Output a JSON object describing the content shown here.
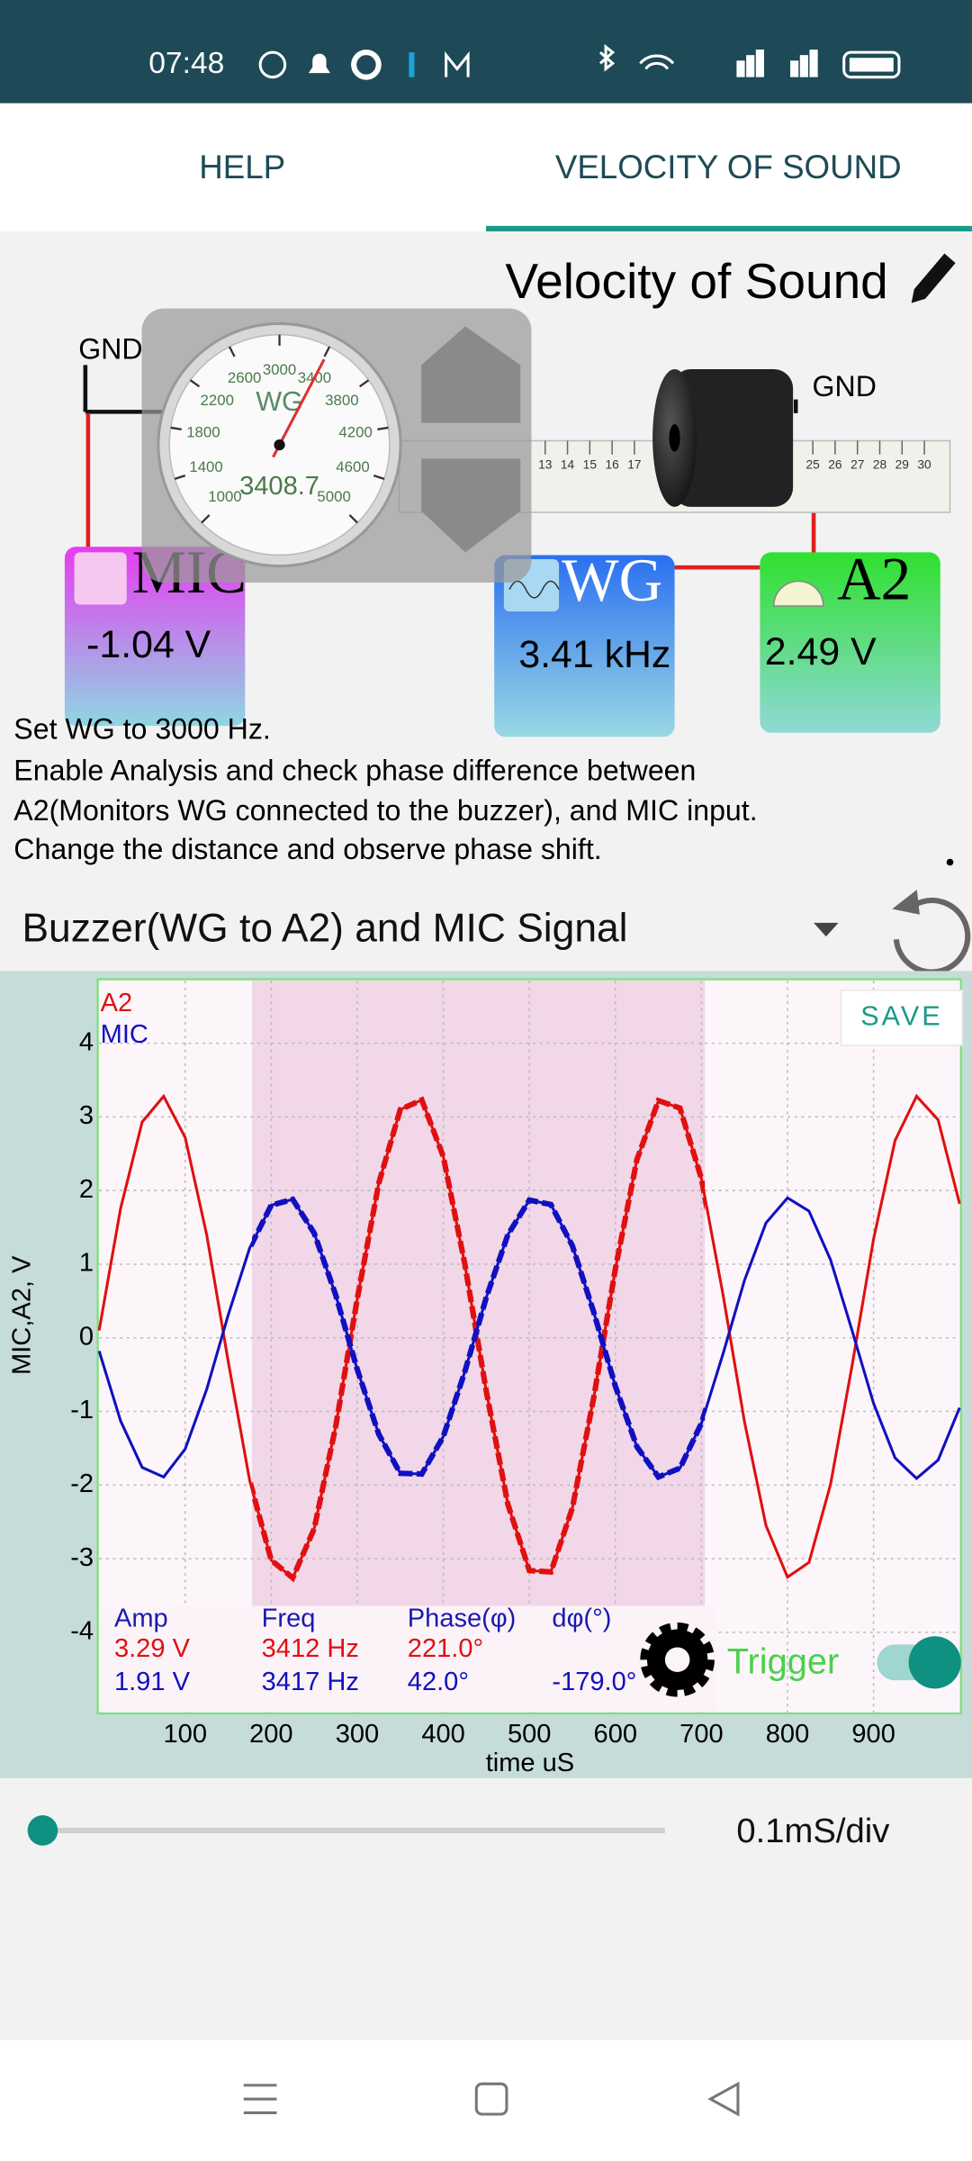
{
  "status_bar": {
    "time": "07:48"
  },
  "tabs": [
    "HELP",
    "VELOCITY OF SOUND"
  ],
  "experiment": {
    "title": "Velocity of Sound",
    "gnd_left": "GND",
    "gnd_right": "GND",
    "ruler": [
      13,
      14,
      15,
      16,
      17,
      25,
      26,
      27,
      28,
      29,
      30
    ],
    "gauge": {
      "label": "WG",
      "ticks": [
        1000,
        1400,
        1800,
        2200,
        2600,
        3000,
        3400,
        3800,
        4200,
        4600,
        5000
      ],
      "reading": 3408.7
    },
    "widgets": [
      {
        "name": "MIC",
        "value": "-1.04 V"
      },
      {
        "name": "WG",
        "value": "3.41 kHz"
      },
      {
        "name": "A2",
        "value": "2.49 V"
      }
    ]
  },
  "instructions": [
    "Set WG to 3000 Hz.",
    "Enable Analysis and check phase difference between",
    "A2(Monitors WG connected to the buzzer), and MIC input.",
    "Change the distance and observe phase shift."
  ],
  "dropdown": "Buzzer(WG to A2) and MIC Signal",
  "chart_data": {
    "type": "line",
    "y_label": "MIC,A2, V",
    "x_label": "time uS",
    "save": "SAVE",
    "x": [
      0,
      25,
      50,
      75,
      100,
      125,
      150,
      175,
      200,
      225,
      250,
      275,
      300,
      325,
      350,
      375,
      400,
      425,
      450,
      475,
      500,
      525,
      550,
      575,
      600,
      625,
      650,
      675,
      700,
      725,
      750,
      775,
      800,
      825,
      850,
      875,
      900,
      925,
      950,
      975,
      1000
    ],
    "series": [
      {
        "name": "A2",
        "color": "#e01010",
        "values": [
          0.1,
          1.76,
          2.93,
          3.28,
          2.72,
          1.4,
          -0.32,
          -1.94,
          -3.02,
          -3.26,
          -2.59,
          -1.2,
          0.53,
          2.1,
          3.1,
          3.23,
          2.46,
          1.0,
          -0.73,
          -2.26,
          -3.16,
          -3.18,
          -2.31,
          -0.8,
          0.94,
          2.42,
          3.22,
          3.12,
          2.16,
          0.59,
          -1.14,
          -2.55,
          -3.25,
          -3.05,
          -1.99,
          -0.38,
          1.34,
          2.68,
          3.28,
          2.96,
          1.82
        ]
      },
      {
        "name": "MIC",
        "color": "#1010c0",
        "values": [
          -0.18,
          -1.13,
          -1.76,
          -1.89,
          -1.51,
          -0.7,
          0.31,
          1.22,
          1.8,
          1.88,
          1.42,
          0.58,
          -0.43,
          -1.31,
          -1.84,
          -1.85,
          -1.34,
          -0.46,
          0.55,
          1.4,
          1.87,
          1.81,
          1.25,
          0.34,
          -0.66,
          -1.48,
          -1.89,
          -1.77,
          -1.16,
          -0.22,
          0.78,
          1.56,
          1.9,
          1.72,
          1.06,
          0.1,
          -0.89,
          -1.63,
          -1.91,
          -1.66,
          -0.95
        ]
      }
    ],
    "xlim": [
      0,
      1000
    ],
    "ylim": [
      -5.1,
      4.85
    ],
    "xticks": [
      100,
      200,
      300,
      400,
      500,
      600,
      700,
      800,
      900
    ],
    "yticks": [
      -4,
      -3,
      -2,
      -1,
      0,
      1,
      2,
      3,
      4
    ],
    "grid": true,
    "stats": {
      "headers": [
        "Amp",
        "Freq",
        "Phase(φ)",
        "dφ(°)"
      ],
      "rows": [
        [
          "3.29 V",
          "3412 Hz",
          "221.0°"
        ],
        [
          "1.91 V",
          "3417 Hz",
          "42.0°",
          "-179.0°"
        ]
      ]
    }
  },
  "trigger": "Trigger",
  "timebase": "0.1mS/div"
}
